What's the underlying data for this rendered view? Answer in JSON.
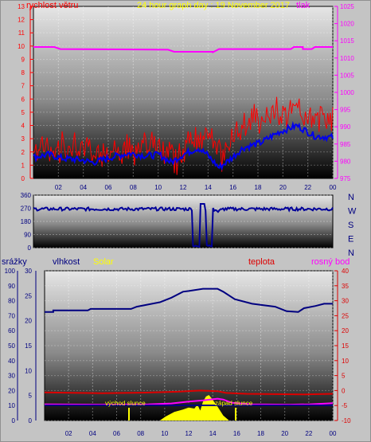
{
  "header": {
    "wind_label": "rychlost větru",
    "title": "24 hour graph day : 19 November 2017",
    "pressure_label": "tlak"
  },
  "wind_axis": [
    "0",
    "1",
    "2",
    "3",
    "4",
    "5",
    "6",
    "7",
    "8",
    "9",
    "10",
    "11",
    "12",
    "13"
  ],
  "pressure_axis": [
    "975",
    "980",
    "985",
    "990",
    "995",
    "1000",
    "1005",
    "1010",
    "1015",
    "1020",
    "1025"
  ],
  "hours": [
    "02",
    "04",
    "06",
    "08",
    "10",
    "12",
    "14",
    "16",
    "18",
    "20",
    "22",
    "00"
  ],
  "dir_axis": [
    "0",
    "90",
    "180",
    "270",
    "360"
  ],
  "compass": [
    "N",
    "W",
    "S",
    "E",
    "N"
  ],
  "lower_labels": {
    "rain": "srážky",
    "humidity": "vlhkost",
    "solar": "Solar",
    "temp": "teplota",
    "dew": "rosný bod"
  },
  "hum_axis": [
    "0",
    "10",
    "20",
    "30",
    "40",
    "50",
    "60",
    "70",
    "80",
    "90",
    "100"
  ],
  "rain_axis": [
    "0",
    "5",
    "10",
    "15",
    "20",
    "25",
    "30"
  ],
  "temp_axis": [
    "-10",
    "-5",
    "0",
    "5",
    "10",
    "15",
    "20",
    "25",
    "30",
    "35",
    "40"
  ],
  "sun": {
    "sunrise": "východ slunce",
    "sunset": "západ slunce"
  },
  "colors": {
    "wind": "#ff0000",
    "wind_avg": "#0000ee",
    "pressure": "#ff00ff",
    "humidity": "#000080",
    "temp": "#dd0000",
    "dew": "#ff00ff",
    "solar": "#ffff00"
  },
  "chart_data": [
    {
      "type": "line",
      "title": "24 hour graph day : 19 November 2017",
      "x": [
        "02",
        "04",
        "06",
        "08",
        "10",
        "12",
        "14",
        "16",
        "18",
        "20",
        "22",
        "00"
      ],
      "series": [
        {
          "name": "rychlost větru",
          "axis": "left",
          "values": [
            1.8,
            1.5,
            1.6,
            1.3,
            1.5,
            1.7,
            2.0,
            1.3,
            2.6,
            3.5,
            3.8,
            3.5
          ]
        },
        {
          "name": "tlak",
          "axis": "right",
          "values": [
            1013,
            1013,
            1013,
            1013,
            1013,
            1012,
            1012,
            1012,
            1012,
            1012,
            1013,
            1013
          ]
        }
      ],
      "ylim": [
        0,
        13
      ],
      "y2lim": [
        975,
        1025
      ]
    },
    {
      "type": "line",
      "x": [
        "02",
        "04",
        "06",
        "08",
        "10",
        "12",
        "14",
        "16",
        "18",
        "20",
        "22",
        "00"
      ],
      "series": [
        {
          "values": [
            270,
            265,
            265,
            268,
            265,
            270,
            280,
            265,
            265,
            268,
            270,
            270
          ]
        }
      ],
      "ylim": [
        0,
        360
      ]
    },
    {
      "type": "line",
      "x": [
        "02",
        "04",
        "06",
        "08",
        "10",
        "12",
        "14",
        "16",
        "18",
        "20",
        "22",
        "00"
      ],
      "series": [
        {
          "name": "vlhkost",
          "axis": "left",
          "values": [
            73,
            74,
            74,
            76,
            80,
            87,
            88,
            80,
            75,
            72,
            76,
            78
          ]
        },
        {
          "name": "teplota",
          "axis": "right",
          "values": [
            2.0,
            1.8,
            1.7,
            1.8,
            1.9,
            2.2,
            2.0,
            1.4,
            1.5,
            1.3,
            1.3,
            1.5
          ]
        },
        {
          "name": "rosný bod",
          "axis": "right",
          "values": [
            -2.5,
            -2.5,
            -2.5,
            -2.4,
            -2.3,
            -1.5,
            -0.3,
            -2.0,
            -2.5,
            -2.5,
            -2.7,
            -2.3
          ]
        },
        {
          "name": "Solar",
          "axis": "rain",
          "values": [
            0,
            0,
            0,
            0,
            2,
            5,
            8,
            0,
            0,
            0,
            0,
            0
          ]
        }
      ],
      "ylim": [
        0,
        100
      ],
      "y2lim": [
        -10,
        40
      ]
    }
  ]
}
